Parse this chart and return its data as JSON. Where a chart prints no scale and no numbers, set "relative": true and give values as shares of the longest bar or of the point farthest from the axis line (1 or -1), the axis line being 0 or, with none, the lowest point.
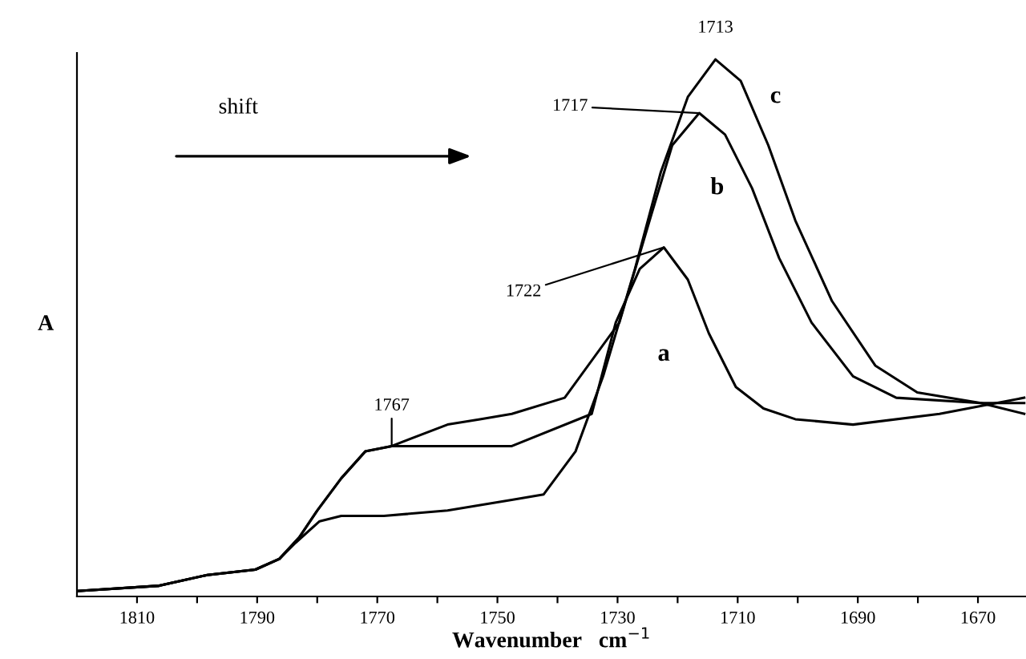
{
  "chart_data": {
    "type": "line",
    "relative": true,
    "xlabel": "Wavenumber   cm$^{−1}$",
    "ylabel": "A",
    "xlim": [
      1820,
      1662
    ],
    "xticks": [
      1810,
      {
        "value": 1800,
        "label": null
      },
      1790,
      {
        "value": 1780,
        "label": null
      },
      1770,
      {
        "value": 1760,
        "label": null
      },
      1750,
      {
        "value": 1740,
        "label": null
      },
      1730,
      {
        "value": 1720,
        "label": null
      },
      1710,
      {
        "value": 1700,
        "label": null
      },
      1690,
      {
        "value": 1680,
        "label": null
      },
      1670
    ],
    "grid": false,
    "marker": "none",
    "line_style": "solid",
    "series": [
      {
        "name": "a",
        "color": "#000000",
        "x": [
          1820,
          1806.3,
          1798.3,
          1790.3,
          1786.3,
          1783,
          1780,
          1776,
          1772,
          1767.6,
          1763,
          1755,
          1747.6,
          1734.3,
          1730.3,
          1726.3,
          1722.3,
          1718.3,
          1714.8,
          1710.3,
          1705.7,
          1700.4,
          1690.8,
          1676.4,
          1662.3
        ],
        "values": [
          0.01,
          0.02,
          0.04,
          0.05,
          0.07,
          0.11,
          0.16,
          0.22,
          0.27,
          0.28,
          0.28,
          0.28,
          0.28,
          0.34,
          0.51,
          0.61,
          0.65,
          0.59,
          0.49,
          0.39,
          0.35,
          0.33,
          0.32,
          0.34,
          0.37
        ]
      },
      {
        "name": "b",
        "color": "#000000",
        "x": [
          1820,
          1806.3,
          1798.3,
          1790.3,
          1786.3,
          1783,
          1780,
          1776,
          1772,
          1767.6,
          1758.3,
          1752.9,
          1747.6,
          1738.8,
          1729.7,
          1724.4,
          1720.9,
          1716.4,
          1712.1,
          1707.6,
          1703.1,
          1697.7,
          1690.8,
          1683.6,
          1669.5,
          1662.3
        ],
        "values": [
          0.01,
          0.02,
          0.04,
          0.05,
          0.07,
          0.11,
          0.16,
          0.22,
          0.27,
          0.28,
          0.32,
          0.33,
          0.34,
          0.37,
          0.51,
          0.71,
          0.84,
          0.9,
          0.86,
          0.76,
          0.63,
          0.51,
          0.41,
          0.37,
          0.36,
          0.36
        ]
      },
      {
        "name": "c",
        "color": "#000000",
        "x": [
          1820,
          1806.3,
          1798.3,
          1790.3,
          1786.3,
          1783.6,
          1779.6,
          1776,
          1768.9,
          1758.3,
          1747.6,
          1742.3,
          1737,
          1732.4,
          1727.1,
          1722.8,
          1718.3,
          1713.7,
          1709.5,
          1704.9,
          1700.4,
          1694.3,
          1687.1,
          1680.1,
          1669.5,
          1662.3
        ],
        "values": [
          0.01,
          0.02,
          0.04,
          0.05,
          0.07,
          0.1,
          0.14,
          0.15,
          0.15,
          0.16,
          0.18,
          0.19,
          0.27,
          0.41,
          0.61,
          0.79,
          0.93,
          1.0,
          0.96,
          0.84,
          0.7,
          0.55,
          0.43,
          0.38,
          0.36,
          0.34
        ]
      }
    ],
    "annotations": [
      {
        "text": "1713",
        "x": 1713.7,
        "y": 1.0
      },
      {
        "text": "1717",
        "x": 1716.4,
        "y": 0.9
      },
      {
        "text": "1722",
        "x": 1722.3,
        "y": 0.65
      },
      {
        "text": "1767",
        "x": 1767.6,
        "y": 0.28
      },
      "shift"
    ]
  }
}
